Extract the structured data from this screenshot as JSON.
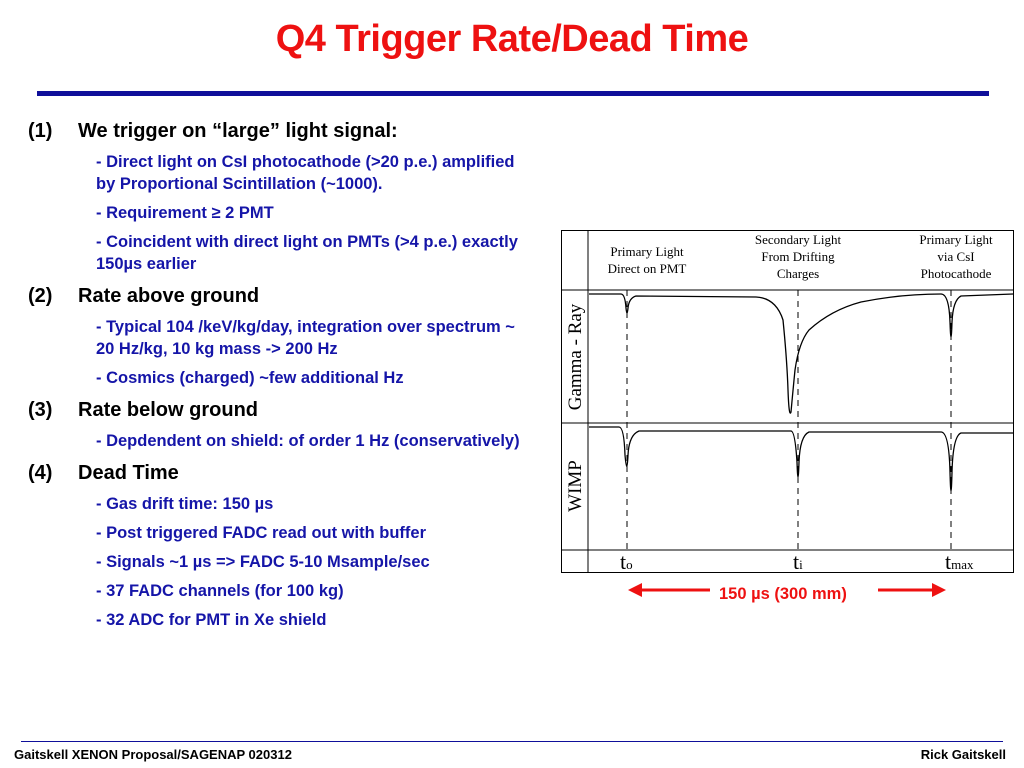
{
  "title": "Q4 Trigger Rate/Dead Time",
  "sections": [
    {
      "number": "(1)",
      "heading": "We trigger on “large” light signal:",
      "points": [
        "- Direct light on CsI photocathode (>20 p.e.) amplified by Proportional Scintillation (~1000).",
        "- Requirement ≥ 2 PMT",
        "- Coincident with direct light on PMTs (>4 p.e.) exactly 150µs earlier"
      ]
    },
    {
      "number": "(2)",
      "heading": "Rate above ground",
      "points": [
        "- Typical 104 /keV/kg/day, integration over spectrum ~ 20 Hz/kg, 10 kg mass -> 200 Hz",
        "- Cosmics (charged) ~few additional Hz"
      ]
    },
    {
      "number": "(3)",
      "heading": "Rate below ground",
      "points": [
        "- Depdendent on shield: of order 1 Hz (conservatively)"
      ]
    },
    {
      "number": "(4)",
      "heading": "Dead Time",
      "points": [
        "- Gas drift time: 150 µs",
        "- Post triggered FADC read out with buffer",
        "- Signals ~1 µs => FADC 5-10 Msample/sec",
        "- 37 FADC channels (for 100 kg)",
        "- 32 ADC for PMT in Xe shield"
      ]
    }
  ],
  "figure": {
    "headers": [
      [
        "Primary Light",
        "Direct on PMT"
      ],
      [
        "Secondary Light",
        "From Drifting",
        "Charges"
      ],
      [
        "Primary Light",
        "via CsI",
        "Photocathode"
      ]
    ],
    "rows": [
      "Gamma - Ray",
      "WIMP"
    ],
    "time_markers": [
      {
        "base": "t",
        "sub": "o"
      },
      {
        "base": "t",
        "sub": "i"
      },
      {
        "base": "t",
        "sub": "max"
      }
    ]
  },
  "caption": "150 µs (300 mm)",
  "footer": {
    "left": "Gaitskell  XENON Proposal/SAGENAP 020312",
    "right": "Rick Gaitskell"
  },
  "colors": {
    "title": "#ee1111",
    "rule": "#0f0f9a",
    "subtext": "#1515a8",
    "arrow": "#ee1111"
  }
}
